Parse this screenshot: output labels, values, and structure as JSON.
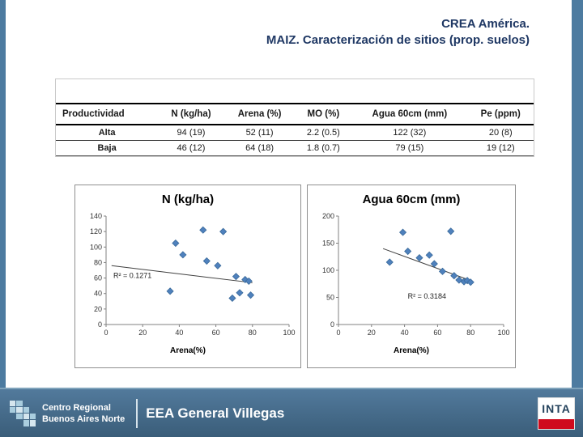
{
  "slide": {
    "title_line1": "CREA América.",
    "title_line2": "MAIZ. Caracterización de sitios (prop. suelos)",
    "colors": {
      "frame_blue": "#4d7ba0",
      "footer_blue": "#3a5d79",
      "title_navy": "#1f3864",
      "marker_blue": "#4f81bd",
      "inta_red": "#cf0a1d"
    }
  },
  "table": {
    "headers": [
      "Productividad",
      "N (kg/ha)",
      "Arena (%)",
      "MO (%)",
      "Agua 60cm (mm)",
      "Pe (ppm)"
    ],
    "rows": [
      {
        "label": "Alta",
        "values": [
          "94 (19)",
          "52 (11)",
          "2.2 (0.5)",
          "122 (32)",
          "20 (8)"
        ]
      },
      {
        "label": "Baja",
        "values": [
          "46 (12)",
          "64 (18)",
          "1.8 (0.7)",
          "79 (15)",
          "19 (12)"
        ]
      }
    ]
  },
  "chart_data": [
    {
      "type": "scatter",
      "title": "N (kg/ha)",
      "xlabel": "Arena(%)",
      "ylabel": "",
      "xlim": [
        0,
        100
      ],
      "ylim": [
        0,
        140
      ],
      "xticks": [
        0,
        20,
        40,
        60,
        80,
        100
      ],
      "yticks": [
        0,
        20,
        40,
        60,
        80,
        100,
        120,
        140
      ],
      "grid": false,
      "legend": false,
      "marker_color": "#4f81bd",
      "points": [
        [
          35,
          43
        ],
        [
          38,
          105
        ],
        [
          42,
          90
        ],
        [
          53,
          122
        ],
        [
          55,
          82
        ],
        [
          61,
          76
        ],
        [
          64,
          120
        ],
        [
          69,
          34
        ],
        [
          71,
          62
        ],
        [
          73,
          41
        ],
        [
          76,
          58
        ],
        [
          78,
          56
        ],
        [
          79,
          38
        ]
      ],
      "trendline": [
        [
          3,
          76
        ],
        [
          80,
          54
        ]
      ],
      "r2_label": "R² = 0.1271",
      "r2_pos": [
        4,
        60
      ]
    },
    {
      "type": "scatter",
      "title": "Agua 60cm (mm)",
      "xlabel": "Arena(%)",
      "ylabel": "",
      "xlim": [
        0,
        100
      ],
      "ylim": [
        0,
        200
      ],
      "xticks": [
        0,
        20,
        40,
        60,
        80,
        100
      ],
      "yticks": [
        0,
        50,
        100,
        150,
        200
      ],
      "grid": false,
      "legend": false,
      "marker_color": "#4f81bd",
      "points": [
        [
          31,
          115
        ],
        [
          39,
          170
        ],
        [
          42,
          135
        ],
        [
          49,
          123
        ],
        [
          55,
          128
        ],
        [
          58,
          112
        ],
        [
          63,
          98
        ],
        [
          68,
          172
        ],
        [
          70,
          90
        ],
        [
          73,
          82
        ],
        [
          76,
          79
        ],
        [
          78,
          81
        ],
        [
          80,
          78
        ]
      ],
      "trendline": [
        [
          27,
          140
        ],
        [
          81,
          80
        ]
      ],
      "r2_label": "R² = 0.3184",
      "r2_pos": [
        42,
        48
      ]
    }
  ],
  "footer": {
    "org_line1": "Centro Regional",
    "org_line2": "Buenos Aires Norte",
    "station": "EEA General Villegas",
    "inta_label": "INTA"
  }
}
